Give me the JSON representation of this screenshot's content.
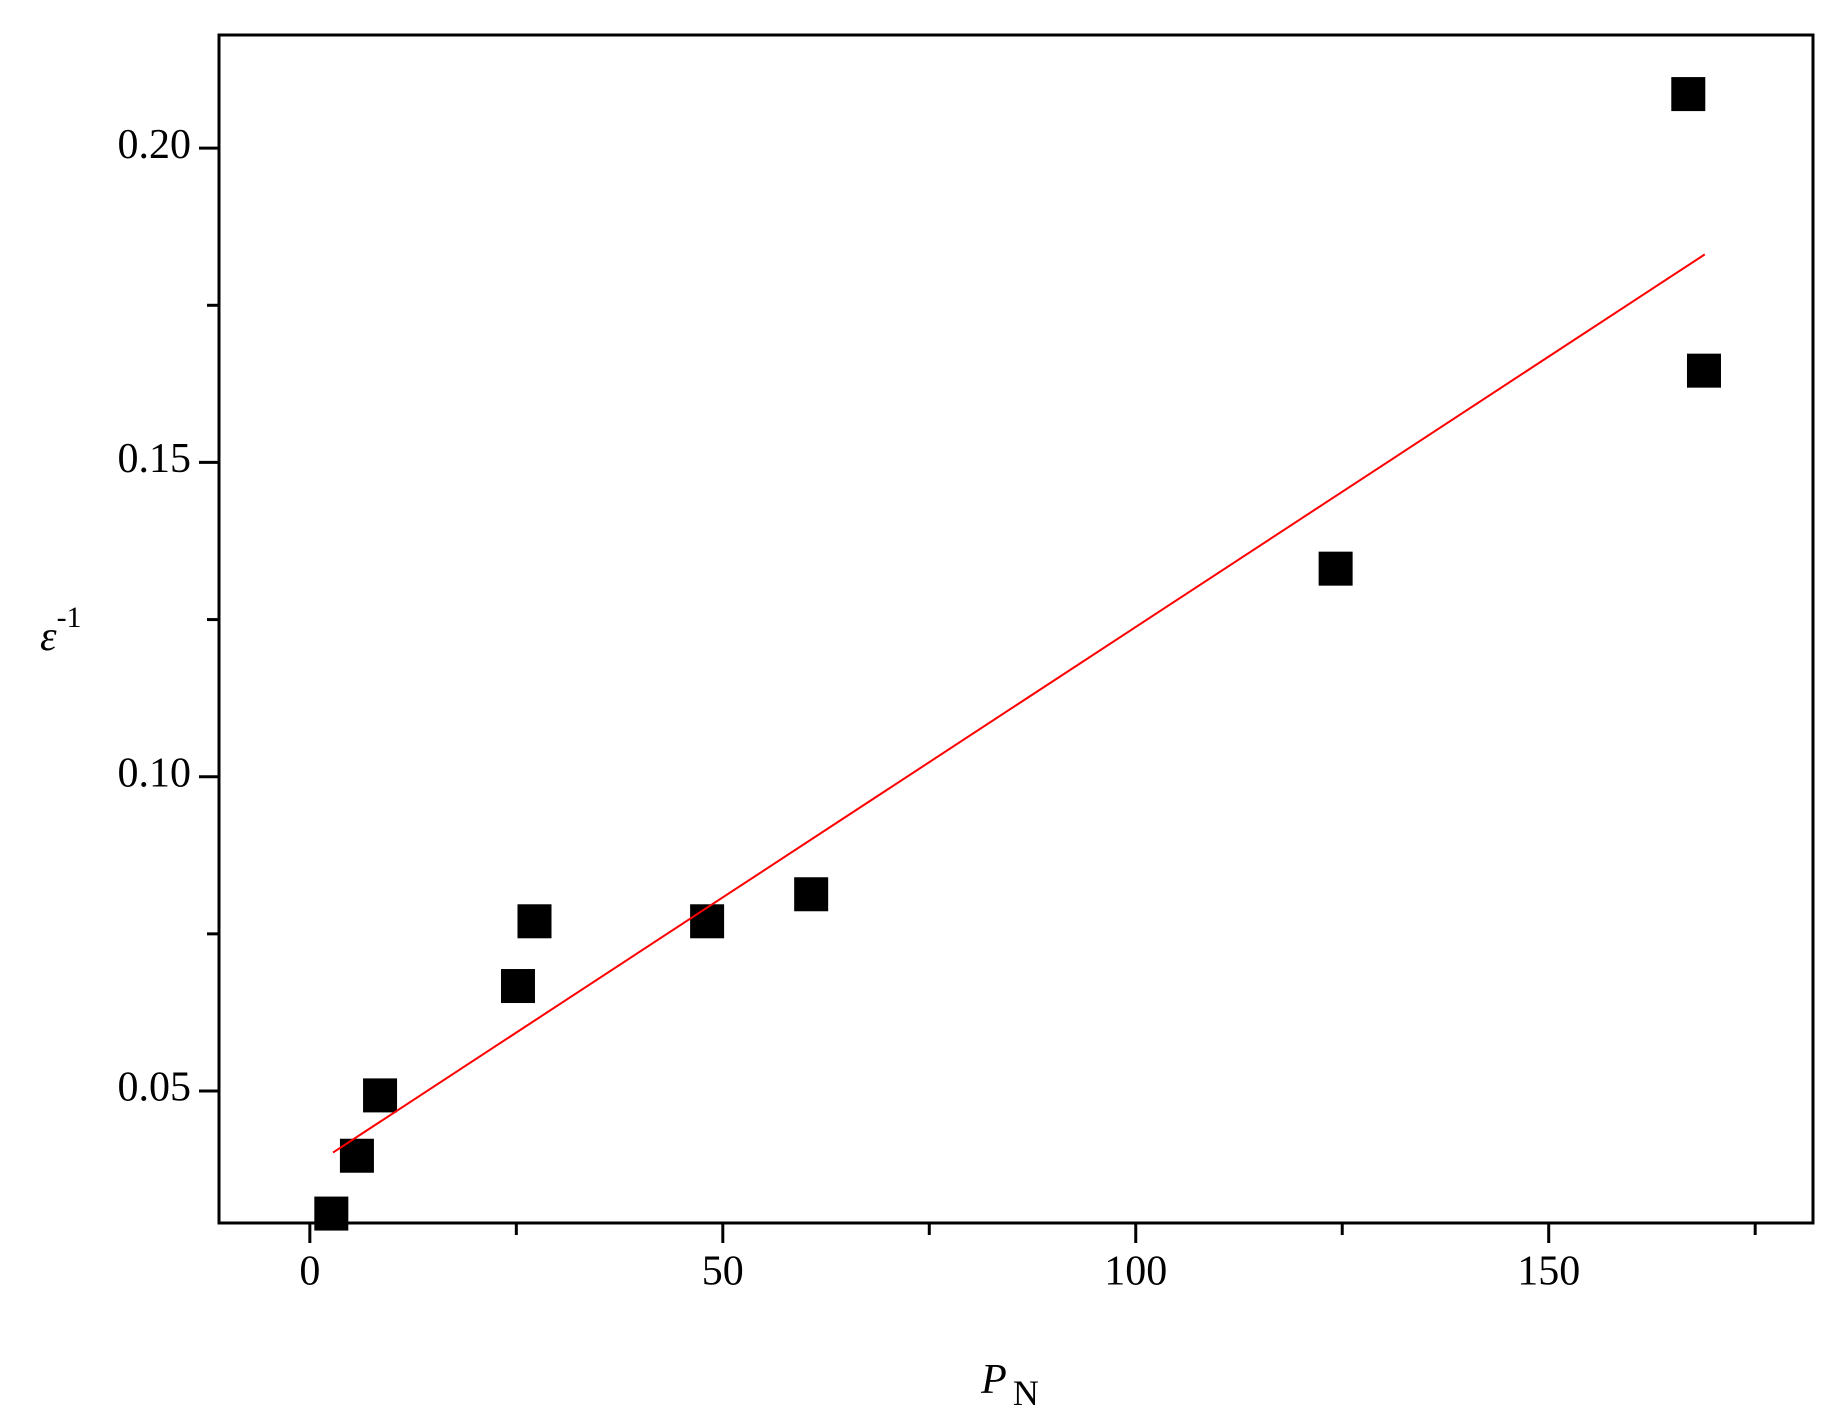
{
  "chart_data": {
    "type": "scatter",
    "x_label": {
      "text": "P",
      "subscript": "N"
    },
    "y_label": {
      "text": "ε",
      "superscript": "-1"
    },
    "series": [
      {
        "type": "scatter",
        "color": "#000000",
        "x": [
          2.6,
          5.7,
          8.5,
          25.2,
          27.2,
          48.1,
          60.7,
          124.2,
          166.9,
          168.8
        ],
        "values": [
          0.0305,
          0.0397,
          0.0493,
          0.0667,
          0.077,
          0.077,
          0.0813,
          0.1331,
          0.2086,
          0.1646
        ]
      },
      {
        "type": "line",
        "color": "#ff0000",
        "x": [
          2.8,
          168.9
        ],
        "values": [
          0.0402,
          0.1831
        ]
      }
    ],
    "xlim": [
      -11,
      182
    ],
    "ylim": [
      0.029,
      0.218
    ],
    "xticks": [
      0,
      50,
      100,
      150
    ],
    "yticks": [
      {
        "value": 0.05,
        "label": "0.05"
      },
      {
        "value": 0.1,
        "label": "0.10"
      },
      {
        "value": 0.15,
        "label": "0.15"
      },
      {
        "value": 0.2,
        "label": "0.20"
      }
    ],
    "xminor_ticks": [
      25,
      75,
      125,
      175
    ],
    "yminor_ticks": [
      0.075,
      0.125,
      0.175
    ],
    "grid": false
  }
}
